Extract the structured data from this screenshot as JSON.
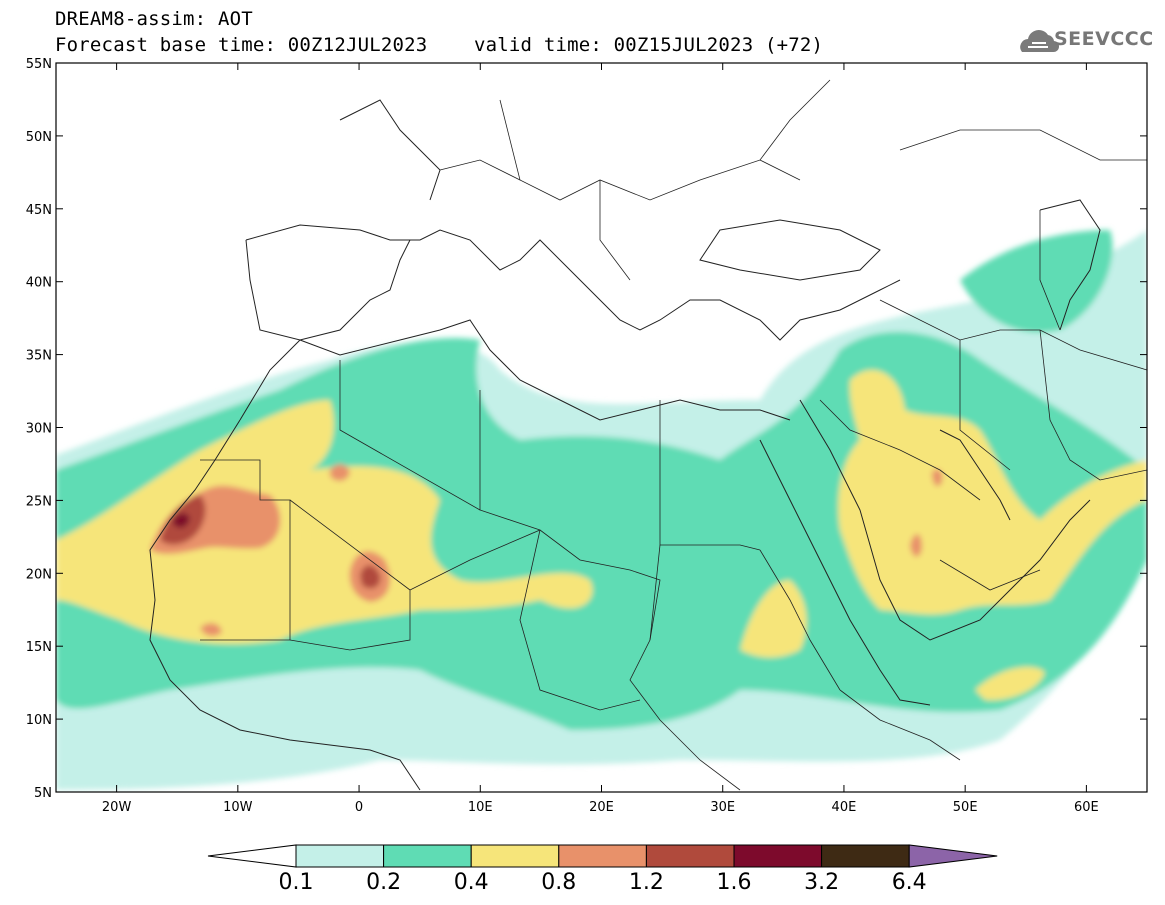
{
  "title": {
    "line1": "DREAM8-assim: AOT",
    "line2": "Forecast base time: 00Z12JUL2023    valid time: 00Z15JUL2023 (+72)"
  },
  "logo": {
    "text": "SEEVCCC",
    "icon": "cloud-icon"
  },
  "map": {
    "lon_range": [
      -25,
      65
    ],
    "lat_range": [
      5,
      55
    ],
    "lat_ticks": [
      "5N",
      "10N",
      "15N",
      "20N",
      "25N",
      "30N",
      "35N",
      "40N",
      "45N",
      "50N",
      "55N"
    ],
    "lon_ticks": [
      "20W",
      "10W",
      "0",
      "10E",
      "20E",
      "30E",
      "40E",
      "50E",
      "60E"
    ],
    "variable": "AOT"
  },
  "colorbar": {
    "labels": [
      "0.1",
      "0.2",
      "0.4",
      "0.8",
      "1.2",
      "1.6",
      "3.2",
      "6.4"
    ],
    "colors": [
      "#ffffff",
      "#c4f0e8",
      "#5fdcb4",
      "#f6e57a",
      "#e8916a",
      "#b04a3c",
      "#7d0a2c",
      "#3e2a14",
      "#8c64a8"
    ]
  }
}
